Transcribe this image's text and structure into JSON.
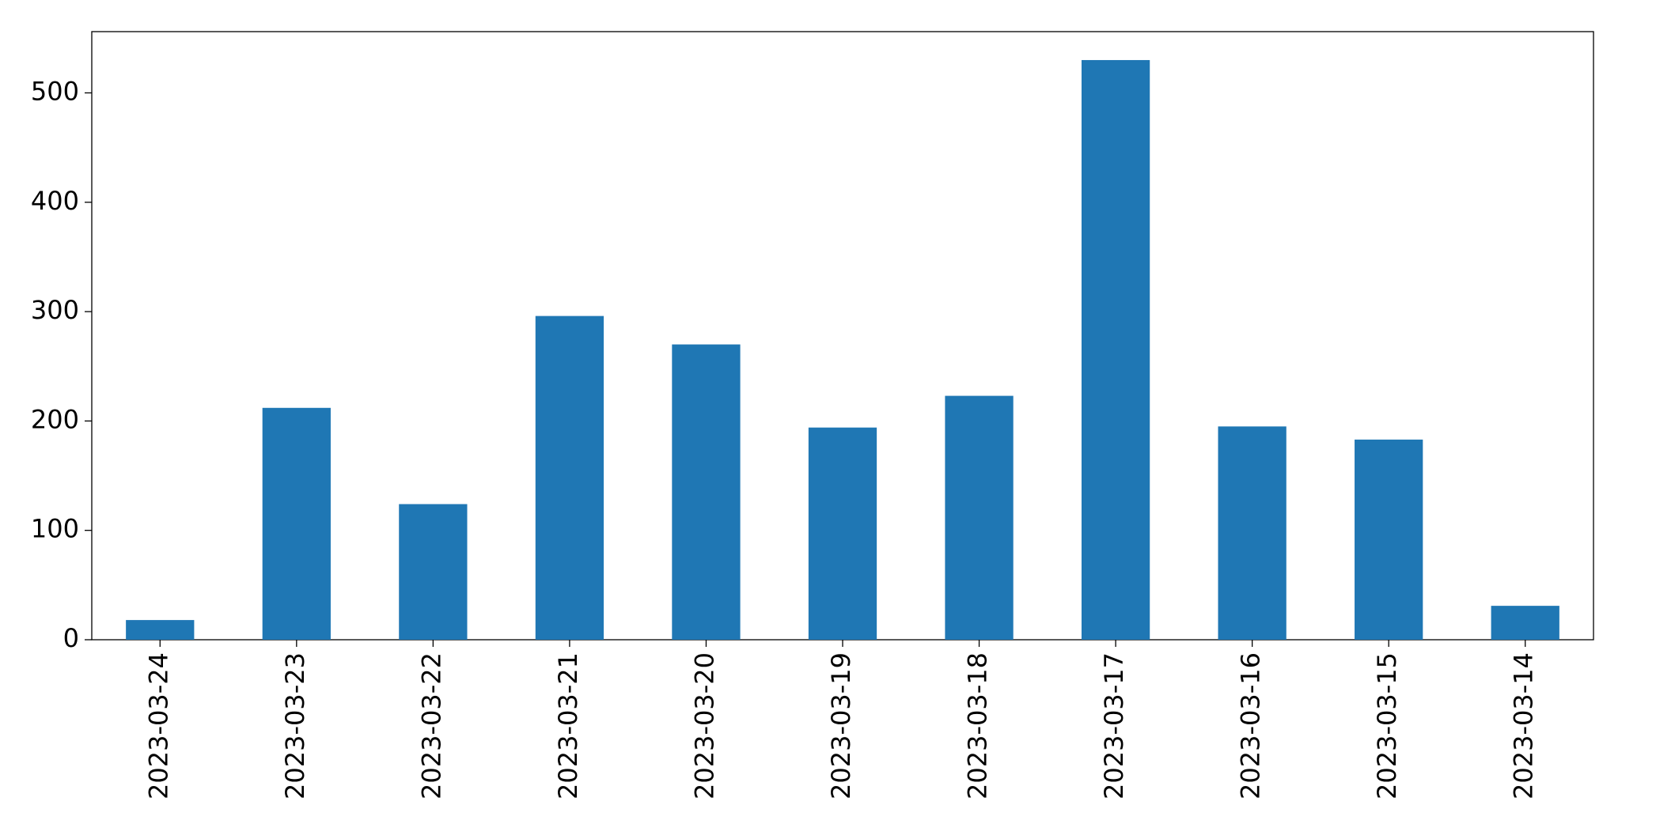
{
  "chart_data": {
    "type": "bar",
    "categories": [
      "2023-03-24",
      "2023-03-23",
      "2023-03-22",
      "2023-03-21",
      "2023-03-20",
      "2023-03-19",
      "2023-03-18",
      "2023-03-17",
      "2023-03-16",
      "2023-03-15",
      "2023-03-14"
    ],
    "values": [
      18,
      212,
      124,
      296,
      270,
      194,
      223,
      530,
      195,
      183,
      31
    ],
    "color": "#1f77b4",
    "ylim": [
      0,
      556
    ],
    "yticks": [
      0,
      100,
      200,
      300,
      400,
      500
    ],
    "grid": false
  }
}
